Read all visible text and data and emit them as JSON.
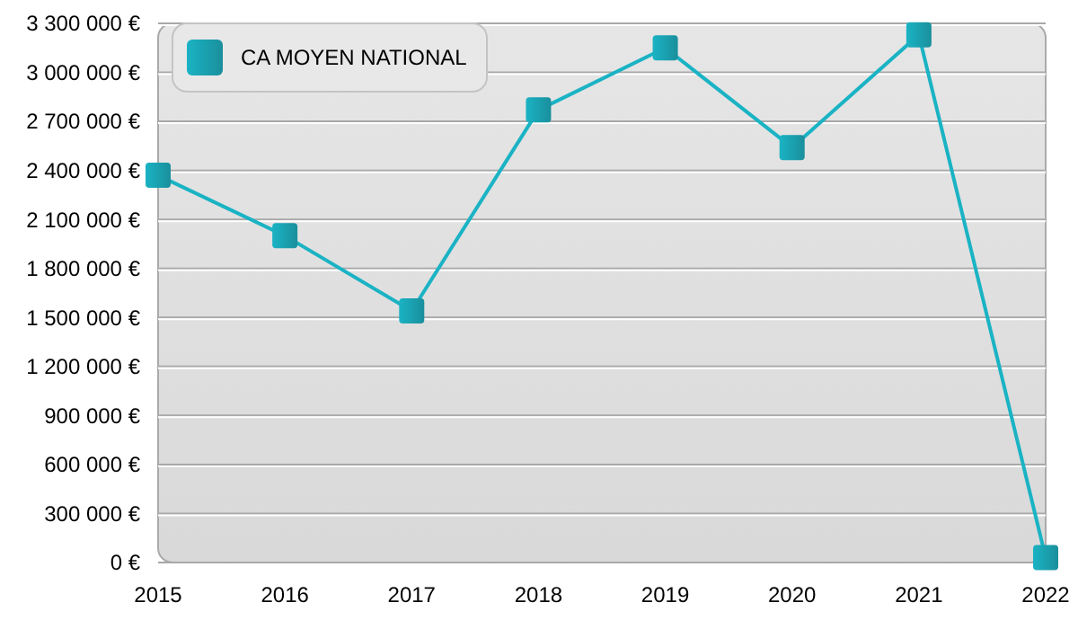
{
  "chart_data": {
    "type": "line",
    "categories": [
      "2015",
      "2016",
      "2017",
      "2018",
      "2019",
      "2020",
      "2021",
      "2022"
    ],
    "series": [
      {
        "name": "CA MOYEN NATIONAL",
        "color": "#1ab3c4",
        "values": [
          2370000,
          2000000,
          1540000,
          2770000,
          3150000,
          2540000,
          3230000,
          30000
        ]
      }
    ],
    "ylim": [
      0,
      3300000
    ],
    "yticks": [
      {
        "value": 0,
        "label": "0 €"
      },
      {
        "value": 300000,
        "label": "300 000 €"
      },
      {
        "value": 600000,
        "label": "600 000 €"
      },
      {
        "value": 900000,
        "label": "900 000 €"
      },
      {
        "value": 1200000,
        "label": "1 200 000 €"
      },
      {
        "value": 1500000,
        "label": "1 500 000 €"
      },
      {
        "value": 1800000,
        "label": "1 800 000 €"
      },
      {
        "value": 2100000,
        "label": "2 100 000 €"
      },
      {
        "value": 2400000,
        "label": "2 400 000 €"
      },
      {
        "value": 2700000,
        "label": "2 700 000 €"
      },
      {
        "value": 3000000,
        "label": "3 000 000 €"
      },
      {
        "value": 3300000,
        "label": "3 300 000 €"
      }
    ],
    "grid": "y",
    "legend": "top left",
    "marker": "square",
    "line_style": "solid"
  }
}
